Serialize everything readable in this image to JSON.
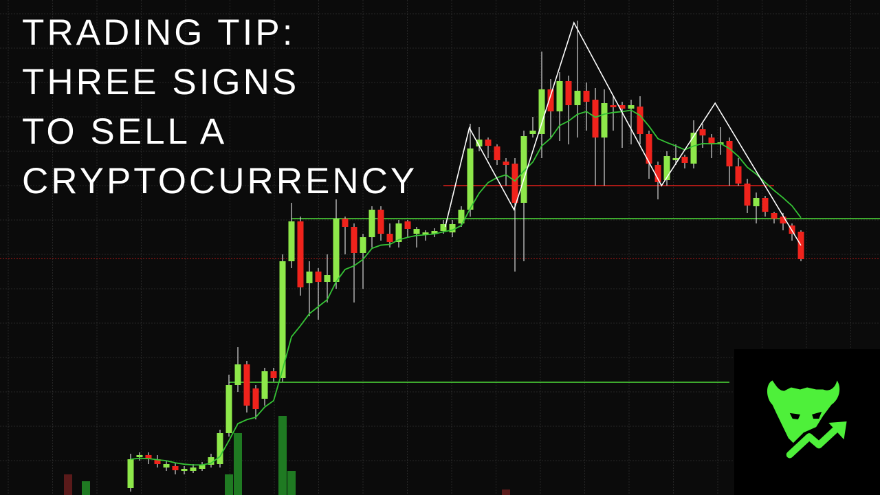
{
  "title_lines": [
    "TRADING TIP:",
    "THREE SIGNS",
    "TO SELL A",
    "CRYPTOCURRENCY"
  ],
  "logo": {
    "icon": "bull-head-with-rising-arrow-icon",
    "color": "#4ef03a"
  },
  "chart_data": {
    "type": "candlestick",
    "title": "",
    "xlabel": "",
    "ylabel": "",
    "grid": true,
    "colors": {
      "up": "#8ee84a",
      "down": "#f0231c",
      "moving_average": "#35c435",
      "pattern_line": "#ffffff",
      "background": "#0b0b0b",
      "grid": "#3a3a3a"
    },
    "candles_ohlc": [
      [
        10,
        52,
        60,
        5
      ],
      [
        55,
        58,
        62,
        50
      ],
      [
        58,
        52,
        62,
        45
      ],
      [
        52,
        45,
        58,
        40
      ],
      [
        40,
        45,
        50,
        35
      ],
      [
        42,
        36,
        46,
        30
      ],
      [
        35,
        38,
        42,
        30
      ],
      [
        35,
        40,
        45,
        32
      ],
      [
        38,
        44,
        48,
        35
      ],
      [
        44,
        55,
        60,
        40
      ],
      [
        45,
        90,
        95,
        40
      ],
      [
        90,
        160,
        175,
        85
      ],
      [
        160,
        190,
        215,
        150
      ],
      [
        190,
        130,
        195,
        120
      ],
      [
        155,
        125,
        160,
        110
      ],
      [
        140,
        180,
        185,
        130
      ],
      [
        180,
        170,
        185,
        165
      ],
      [
        170,
        340,
        350,
        165
      ],
      [
        340,
        398,
        425,
        330
      ],
      [
        398,
        302,
        405,
        290
      ],
      [
        308,
        325,
        340,
        260
      ],
      [
        325,
        310,
        330,
        255
      ],
      [
        310,
        320,
        350,
        280
      ],
      [
        310,
        402,
        430,
        300
      ],
      [
        402,
        390,
        405,
        350
      ],
      [
        390,
        352,
        395,
        280
      ],
      [
        352,
        375,
        380,
        300
      ],
      [
        375,
        415,
        420,
        360
      ],
      [
        415,
        380,
        420,
        370
      ],
      [
        380,
        368,
        395,
        360
      ],
      [
        368,
        395,
        400,
        360
      ],
      [
        398,
        387,
        400,
        375
      ],
      [
        380,
        387,
        390,
        360
      ],
      [
        380,
        382,
        385,
        370
      ],
      [
        380,
        384,
        388,
        375
      ],
      [
        384,
        394,
        400,
        380
      ],
      [
        382,
        394,
        400,
        375
      ],
      [
        395,
        415,
        420,
        390
      ],
      [
        415,
        504,
        540,
        405
      ],
      [
        507,
        517,
        535,
        500
      ],
      [
        517,
        508,
        520,
        490
      ],
      [
        507,
        487,
        510,
        480
      ],
      [
        485,
        480,
        490,
        450
      ],
      [
        482,
        425,
        490,
        325
      ],
      [
        425,
        522,
        530,
        340
      ],
      [
        525,
        530,
        550,
        520
      ],
      [
        525,
        590,
        645,
        490
      ],
      [
        590,
        558,
        605,
        520
      ],
      [
        558,
        602,
        615,
        515
      ],
      [
        602,
        567,
        610,
        510
      ],
      [
        567,
        588,
        690,
        520
      ],
      [
        588,
        572,
        600,
        530
      ],
      [
        575,
        520,
        592,
        450
      ],
      [
        520,
        570,
        590,
        450
      ],
      [
        567,
        565,
        580,
        530
      ],
      [
        567,
        562,
        572,
        505
      ],
      [
        562,
        567,
        575,
        510
      ],
      [
        565,
        525,
        580,
        510
      ],
      [
        525,
        482,
        530,
        460
      ],
      [
        480,
        455,
        485,
        430
      ],
      [
        458,
        493,
        500,
        450
      ],
      [
        490,
        490,
        510,
        480
      ],
      [
        492,
        483,
        495,
        475
      ],
      [
        482,
        527,
        545,
        475
      ],
      [
        532,
        523,
        540,
        505
      ],
      [
        520,
        510,
        525,
        490
      ],
      [
        510,
        513,
        535,
        495
      ],
      [
        515,
        478,
        520,
        450
      ],
      [
        478,
        453,
        490,
        450
      ],
      [
        453,
        421,
        460,
        410
      ],
      [
        420,
        432,
        440,
        395
      ],
      [
        432,
        412,
        435,
        405
      ],
      [
        410,
        402,
        412,
        395
      ],
      [
        405,
        395,
        410,
        385
      ],
      [
        392,
        380,
        395,
        370
      ],
      [
        383,
        343,
        385,
        340
      ]
    ],
    "volume": [
      {
        "candle": -7,
        "value": 30,
        "dir": "down"
      },
      {
        "candle": -5,
        "value": 20,
        "dir": "up"
      },
      {
        "candle": 11,
        "value": 30,
        "dir": "up"
      },
      {
        "candle": 12,
        "value": 90,
        "dir": "up"
      },
      {
        "candle": 17,
        "value": 115,
        "dir": "up"
      },
      {
        "candle": 18,
        "value": 35,
        "dir": "up"
      },
      {
        "candle": 42,
        "value": 8,
        "dir": "down"
      }
    ],
    "horizontal_levels": [
      {
        "price": 450,
        "color": "#e0201a",
        "style": "solid",
        "from_candle": 35,
        "to_candle": 72
      },
      {
        "price": 402,
        "color": "#4fe03a",
        "style": "solid",
        "from_candle": 18,
        "to_candle": null
      },
      {
        "price": 344,
        "color": "#b01818",
        "style": "dotted",
        "from_candle": null,
        "to_candle": null
      },
      {
        "price": 164,
        "color": "#4fe03a",
        "style": "solid",
        "from_candle": 11,
        "to_candle": 67
      }
    ],
    "pattern_line": [
      [
        35.2,
        390
      ],
      [
        37.9,
        534
      ],
      [
        42.9,
        415
      ],
      [
        49.6,
        687
      ],
      [
        59.4,
        450
      ],
      [
        65.4,
        570
      ],
      [
        75,
        363
      ]
    ],
    "moving_average_period": 8
  }
}
